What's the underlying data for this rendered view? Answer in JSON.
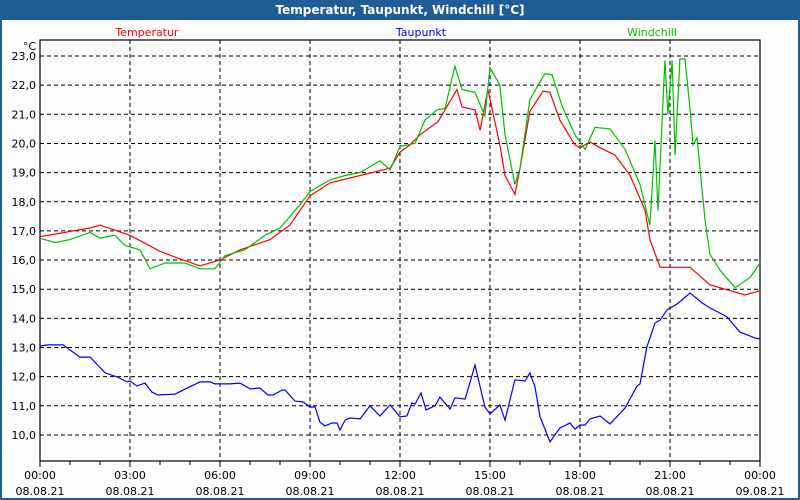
{
  "window": {
    "title": "Temperatur, Taupunkt, Windchill [°C]"
  },
  "chart_data": {
    "type": "line",
    "title": "Temperatur, Taupunkt, Windchill [°C]",
    "ylabel": "°C",
    "xlabel": "",
    "ylim": [
      9.45,
      23.55
    ],
    "xlim_hours": [
      0,
      24
    ],
    "grid": true,
    "legend_placement": "top",
    "y_ticks": [
      {
        "v": 10,
        "label": "10,0"
      },
      {
        "v": 11,
        "label": "11,0"
      },
      {
        "v": 12,
        "label": "12,0"
      },
      {
        "v": 13,
        "label": "13,0"
      },
      {
        "v": 14,
        "label": "14,0"
      },
      {
        "v": 15,
        "label": "15,0"
      },
      {
        "v": 16,
        "label": "16,0"
      },
      {
        "v": 17,
        "label": "17,0"
      },
      {
        "v": 18,
        "label": "18,0"
      },
      {
        "v": 19,
        "label": "19,0"
      },
      {
        "v": 20,
        "label": "20,0"
      },
      {
        "v": 21,
        "label": "21,0"
      },
      {
        "v": 22,
        "label": "22,0"
      },
      {
        "v": 23,
        "label": "23,0"
      }
    ],
    "x_ticks": [
      {
        "h": 0,
        "time": "00:00",
        "date": "08.08.21"
      },
      {
        "h": 3,
        "time": "03:00",
        "date": "08.08.21"
      },
      {
        "h": 6,
        "time": "06:00",
        "date": "08.08.21"
      },
      {
        "h": 9,
        "time": "09:00",
        "date": "08.08.21"
      },
      {
        "h": 12,
        "time": "12:00",
        "date": "08.08.21"
      },
      {
        "h": 15,
        "time": "15:00",
        "date": "08.08.21"
      },
      {
        "h": 18,
        "time": "18:00",
        "date": "08.08.21"
      },
      {
        "h": 21,
        "time": "21:00",
        "date": "08.08.21"
      },
      {
        "h": 24,
        "time": "00:00",
        "date": "09.08.21"
      }
    ],
    "series": [
      {
        "name": "Temperatur",
        "color": "#ff0000",
        "legend_pos": "left",
        "x": [
          0,
          1.67,
          2,
          3,
          4,
          4.5,
          5.33,
          6,
          6.67,
          7.67,
          8.33,
          9,
          9.67,
          10.67,
          11.67,
          12,
          12.33,
          12.67,
          13.27,
          13.9,
          14.07,
          14.5,
          14.67,
          14.93,
          15.33,
          15.5,
          15.83,
          16,
          16.33,
          16.77,
          17,
          17.33,
          17.83,
          18,
          18.33,
          18.67,
          19.17,
          19.67,
          20.17,
          20.33,
          20.67,
          21,
          21.67,
          22.33,
          23.17,
          23.5,
          24
        ],
        "y": [
          16.8,
          17.1,
          17.2,
          16.85,
          16.3,
          16.1,
          15.8,
          16.0,
          16.35,
          16.7,
          17.2,
          18.2,
          18.65,
          18.9,
          19.15,
          19.7,
          19.95,
          20.3,
          20.75,
          21.85,
          21.25,
          21.15,
          20.45,
          21.85,
          19.95,
          18.9,
          18.25,
          19.15,
          21.1,
          21.8,
          21.75,
          20.8,
          19.95,
          19.85,
          20.05,
          19.85,
          19.6,
          18.9,
          17.7,
          16.7,
          15.75,
          15.75,
          15.75,
          15.15,
          14.9,
          14.8,
          14.95
        ]
      },
      {
        "name": "Taupunkt",
        "color": "#0000ff",
        "legend_pos": "center",
        "x": [
          0,
          0.27,
          0.77,
          1.33,
          1.67,
          2.17,
          2.57,
          2.9,
          3,
          3.23,
          3.5,
          3.73,
          3.93,
          4.5,
          4.77,
          5.33,
          5.67,
          5.83,
          6.33,
          6.67,
          7,
          7.33,
          7.6,
          7.77,
          8.07,
          8.17,
          8.5,
          8.77,
          9,
          9.17,
          9.33,
          9.5,
          9.73,
          9.9,
          10,
          10.17,
          10.33,
          10.67,
          11,
          11.33,
          11.67,
          12,
          12.23,
          12.4,
          12.5,
          12.7,
          12.87,
          13.17,
          13.33,
          13.67,
          13.83,
          14.17,
          14.5,
          14.83,
          15,
          15.33,
          15.5,
          15.83,
          16.17,
          16.33,
          16.5,
          16.67,
          17,
          17.33,
          17.67,
          17.83,
          18,
          18.17,
          18.33,
          18.67,
          19,
          19.5,
          19.9,
          20,
          20.23,
          20.5,
          20.67,
          20.9,
          21.23,
          21.67,
          22.07,
          22.33,
          22.67,
          22.9,
          23.33,
          23.5,
          23.83,
          24
        ],
        "y": [
          13.05,
          13.09,
          13.09,
          12.67,
          12.67,
          12.13,
          11.99,
          11.82,
          11.85,
          11.68,
          11.78,
          11.47,
          11.37,
          11.4,
          11.54,
          11.82,
          11.82,
          11.75,
          11.75,
          11.78,
          11.58,
          11.61,
          11.37,
          11.37,
          11.54,
          11.54,
          11.16,
          11.13,
          10.96,
          10.96,
          10.44,
          10.31,
          10.41,
          10.41,
          10.17,
          10.51,
          10.58,
          10.55,
          11.0,
          10.65,
          11.03,
          10.62,
          10.65,
          11.1,
          11.06,
          11.44,
          10.86,
          11.0,
          11.3,
          10.89,
          11.27,
          11.23,
          12.4,
          10.96,
          10.72,
          11.03,
          10.51,
          11.89,
          11.85,
          12.13,
          11.65,
          10.62,
          9.76,
          10.24,
          10.41,
          10.2,
          10.34,
          10.34,
          10.55,
          10.65,
          10.38,
          10.92,
          11.68,
          11.75,
          13.02,
          13.84,
          13.94,
          14.29,
          14.49,
          14.87,
          14.53,
          14.36,
          14.18,
          14.05,
          13.53,
          13.46,
          13.33,
          13.29
        ]
      },
      {
        "name": "Windchill",
        "color": "#00c000",
        "legend_pos": "right",
        "x": [
          0,
          0.5,
          1,
          1.67,
          2,
          2.5,
          2.83,
          3.33,
          3.67,
          4.17,
          4.83,
          5.33,
          5.83,
          6.17,
          6.83,
          7.5,
          8,
          8.67,
          9,
          9.67,
          10.17,
          10.67,
          11.33,
          11.67,
          12,
          12.5,
          12.83,
          13.23,
          13.5,
          13.83,
          14.07,
          14.5,
          14.83,
          15,
          15.33,
          15.5,
          15.83,
          16,
          16.33,
          16.83,
          17.07,
          17.4,
          17.83,
          18.17,
          18.5,
          19,
          19.5,
          20,
          20.33,
          20.5,
          20.6,
          20.83,
          20.93,
          21.07,
          21.17,
          21.33,
          21.5,
          21.67,
          21.77,
          21.9,
          22.17,
          22.33,
          22.67,
          23.17,
          23.67,
          24
        ],
        "y": [
          16.75,
          16.6,
          16.7,
          16.95,
          16.75,
          16.85,
          16.5,
          16.35,
          15.7,
          15.9,
          15.9,
          15.7,
          15.7,
          16.15,
          16.35,
          16.85,
          17.1,
          17.9,
          18.35,
          18.75,
          18.9,
          19.0,
          19.4,
          19.1,
          19.9,
          20.0,
          20.8,
          21.15,
          21.2,
          22.65,
          21.85,
          21.75,
          20.95,
          22.6,
          22.0,
          20.3,
          18.6,
          19.15,
          21.5,
          22.4,
          22.35,
          21.3,
          20.3,
          19.8,
          20.55,
          20.5,
          19.8,
          18.6,
          17.2,
          20.1,
          17.7,
          22.85,
          21.0,
          22.85,
          19.6,
          22.9,
          22.9,
          21.15,
          19.95,
          20.2,
          17.35,
          16.2,
          15.65,
          15.05,
          15.4,
          15.9
        ]
      }
    ]
  }
}
